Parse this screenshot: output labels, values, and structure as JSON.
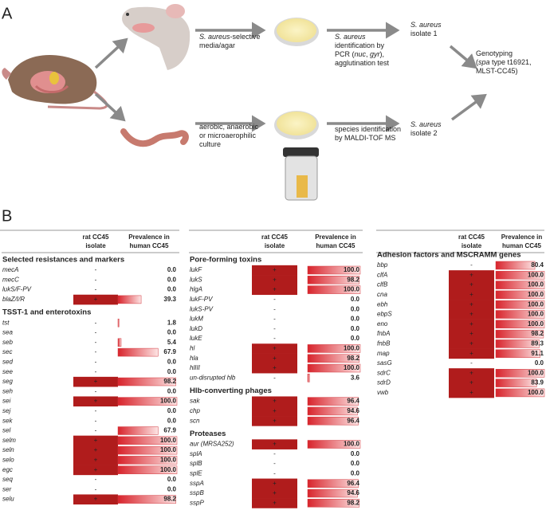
{
  "panel_a": {
    "label": "A",
    "nodes": [
      {
        "lines": [
          [
            {
              "text": "S. aureus",
              "italic": true
            },
            {
              "text": "-selective"
            }
          ],
          [
            {
              "text": "media/agar"
            }
          ]
        ]
      },
      {
        "lines": [
          [
            {
              "text": "S. aureus",
              "italic": true
            }
          ],
          [
            {
              "text": "identification by"
            }
          ],
          [
            {
              "text": "PCR ("
            },
            {
              "text": "nuc",
              "italic": true
            },
            {
              "text": ", "
            },
            {
              "text": "gyr",
              "italic": true
            },
            {
              "text": "),"
            }
          ],
          [
            {
              "text": "agglutination test"
            }
          ]
        ]
      },
      {
        "lines": [
          [
            {
              "text": "S. aureus",
              "italic": true
            }
          ],
          [
            {
              "text": "isolate 1"
            }
          ]
        ]
      },
      {
        "lines": [
          [
            {
              "text": "aerobic, anaerobic"
            }
          ],
          [
            {
              "text": "or microaerophilic"
            }
          ],
          [
            {
              "text": "culture"
            }
          ]
        ]
      },
      {
        "lines": [
          [
            {
              "text": "species identification"
            }
          ],
          [
            {
              "text": "by MALDI-TOF MS"
            }
          ]
        ]
      },
      {
        "lines": [
          [
            {
              "text": "S. aureus",
              "italic": true
            }
          ],
          [
            {
              "text": "isolate 2"
            }
          ]
        ]
      },
      {
        "lines": [
          [
            {
              "text": "Genotyping"
            }
          ],
          [
            {
              "text": "("
            },
            {
              "text": "spa",
              "italic": true
            },
            {
              "text": " type t16921,"
            }
          ],
          [
            {
              "text": "MLST-CC45)"
            }
          ]
        ]
      }
    ]
  },
  "panel_b": {
    "label": "B",
    "highlight_color": "#b01c1c",
    "tables": [
      {
        "columns": [
          [
            "rat CC45",
            "isolate"
          ],
          [
            "Prevalence in",
            "human CC45"
          ]
        ],
        "sections": [
          {
            "title": "Selected resistances and markers",
            "rows": [
              {
                "gene": "mecA",
                "rat": "-",
                "prevalence": {
                  "value": 0,
                  "label": "0.0"
                }
              },
              {
                "gene": "mecC",
                "rat": "-",
                "prevalence": {
                  "value": 0,
                  "label": "0.0"
                }
              },
              {
                "gene": "lukS/F-PV",
                "rat": "-",
                "prevalence": {
                  "value": 0,
                  "label": "0.0"
                }
              },
              {
                "gene": "blaZ/I/R",
                "rat": "+",
                "highlight": true,
                "prevalence": {
                  "value": 39.3,
                  "label": "39.3"
                }
              }
            ]
          },
          {
            "title": "TSST-1 and enterotoxins",
            "rows": [
              {
                "gene": "tst",
                "rat": "-",
                "prevalence": {
                  "value": 1.8,
                  "label": "1.8"
                }
              },
              {
                "gene": "sea",
                "rat": "-",
                "prevalence": {
                  "value": 0,
                  "label": "0.0"
                }
              },
              {
                "gene": "seb",
                "rat": "-",
                "prevalence": {
                  "value": 5.4,
                  "label": "5.4"
                }
              },
              {
                "gene": "sec",
                "rat": "-",
                "prevalence": {
                  "value": 67.9,
                  "label": "67.9"
                }
              },
              {
                "gene": "sed",
                "rat": "-",
                "prevalence": {
                  "value": 0,
                  "label": "0.0"
                }
              },
              {
                "gene": "see",
                "rat": "-",
                "prevalence": {
                  "value": 0,
                  "label": "0.0"
                }
              },
              {
                "gene": "seg",
                "rat": "+",
                "highlight": true,
                "prevalence": {
                  "value": 98.2,
                  "label": "98.2"
                }
              },
              {
                "gene": "seh",
                "rat": "-",
                "prevalence": {
                  "value": 0,
                  "label": "0.0"
                }
              },
              {
                "gene": "sei",
                "rat": "+",
                "highlight": true,
                "prevalence": {
                  "value": 100,
                  "label": "100.0"
                }
              },
              {
                "gene": "sej",
                "rat": "-",
                "prevalence": {
                  "value": 0,
                  "label": "0.0"
                }
              },
              {
                "gene": "sek",
                "rat": "-",
                "prevalence": {
                  "value": 0,
                  "label": "0.0"
                }
              },
              {
                "gene": "sel",
                "rat": "-",
                "prevalence": {
                  "value": 67.9,
                  "label": "67.9"
                }
              },
              {
                "gene": "selm",
                "rat": "+",
                "highlight": true,
                "prevalence": {
                  "value": 100,
                  "label": "100.0"
                }
              },
              {
                "gene": "seln",
                "rat": "+",
                "highlight": true,
                "prevalence": {
                  "value": 100,
                  "label": "100.0"
                }
              },
              {
                "gene": "selo",
                "rat": "+",
                "highlight": true,
                "prevalence": {
                  "value": 100,
                  "label": "100.0"
                }
              },
              {
                "gene": "egc",
                "rat": "+",
                "highlight": true,
                "prevalence": {
                  "value": 100,
                  "label": "100.0"
                }
              },
              {
                "gene": "seq",
                "rat": "-",
                "prevalence": {
                  "value": 0,
                  "label": "0.0"
                }
              },
              {
                "gene": "ser",
                "rat": "-",
                "prevalence": {
                  "value": 0,
                  "label": "0.0"
                }
              },
              {
                "gene": "selu",
                "rat": "+",
                "highlight": true,
                "prevalence": {
                  "value": 98.2,
                  "label": "98.2"
                }
              }
            ]
          }
        ]
      },
      {
        "columns": [
          [
            "rat CC45",
            "isolate"
          ],
          [
            "Prevalence in",
            "human CC45"
          ]
        ],
        "sections": [
          {
            "title": "Pore-forming toxins",
            "rows": [
              {
                "gene": "lukF",
                "rat": "+",
                "highlight": true,
                "prevalence": {
                  "value": 100,
                  "label": "100.0"
                }
              },
              {
                "gene": "lukS",
                "rat": "+",
                "highlight": true,
                "prevalence": {
                  "value": 98.2,
                  "label": "98.2"
                }
              },
              {
                "gene": "hlgA",
                "rat": "+",
                "highlight": true,
                "prevalence": {
                  "value": 100,
                  "label": "100.0"
                }
              },
              {
                "gene": "lukF-PV",
                "rat": "-",
                "prevalence": {
                  "value": 0,
                  "label": "0.0"
                }
              },
              {
                "gene": "lukS-PV",
                "rat": "-",
                "prevalence": {
                  "value": 0,
                  "label": "0.0"
                }
              },
              {
                "gene": "lukM",
                "rat": "-",
                "prevalence": {
                  "value": 0,
                  "label": "0.0"
                }
              },
              {
                "gene": "lukD",
                "rat": "-",
                "prevalence": {
                  "value": 0,
                  "label": "0.0"
                }
              },
              {
                "gene": "lukE",
                "rat": "-",
                "prevalence": {
                  "value": 0,
                  "label": "0.0"
                }
              },
              {
                "gene": "hl",
                "rat": "+",
                "highlight": true,
                "prevalence": {
                  "value": 100,
                  "label": "100.0"
                }
              },
              {
                "gene": "hla",
                "rat": "+",
                "highlight": true,
                "prevalence": {
                  "value": 98.2,
                  "label": "98.2"
                }
              },
              {
                "gene": "hlIII",
                "rat": "+",
                "highlight": true,
                "prevalence": {
                  "value": 100,
                  "label": "100.0"
                }
              },
              {
                "gene": "un-disrupted hlb",
                "rat": "-",
                "prevalence": {
                  "value": 3.6,
                  "label": "3.6"
                }
              }
            ]
          },
          {
            "title": "Hlb-converting phages",
            "rows": [
              {
                "gene": "sak",
                "rat": "+",
                "highlight": true,
                "prevalence": {
                  "value": 96.4,
                  "label": "96.4"
                }
              },
              {
                "gene": "chp",
                "rat": "+",
                "highlight": true,
                "prevalence": {
                  "value": 94.6,
                  "label": "94.6"
                }
              },
              {
                "gene": "scn",
                "rat": "+",
                "highlight": true,
                "prevalence": {
                  "value": 96.4,
                  "label": "96.4"
                }
              }
            ]
          },
          {
            "title": "Proteases",
            "rows": [
              {
                "gene": "aur (MRSA252)",
                "rat": "+",
                "highlight": true,
                "prevalence": {
                  "value": 100,
                  "label": "100.0"
                }
              },
              {
                "gene": "splA",
                "rat": "-",
                "prevalence": {
                  "value": 0,
                  "label": "0.0"
                }
              },
              {
                "gene": "splB",
                "rat": "-",
                "prevalence": {
                  "value": 0,
                  "label": "0.0"
                }
              },
              {
                "gene": "splE",
                "rat": "-",
                "prevalence": {
                  "value": 0,
                  "label": "0.0"
                }
              },
              {
                "gene": "sspA",
                "rat": "+",
                "highlight": true,
                "prevalence": {
                  "value": 96.4,
                  "label": "96.4"
                }
              },
              {
                "gene": "sspB",
                "rat": "+",
                "highlight": true,
                "prevalence": {
                  "value": 94.6,
                  "label": "94.6"
                }
              },
              {
                "gene": "sspP",
                "rat": "+",
                "highlight": true,
                "prevalence": {
                  "value": 98.2,
                  "label": "98.2"
                }
              }
            ]
          }
        ]
      },
      {
        "columns": [
          [
            "rat CC45",
            "isolate"
          ],
          [
            "Prevalence in",
            "human CC45"
          ]
        ],
        "sections": [
          {
            "title": "Adhesion factors and MSCRAMM genes",
            "rows": [
              {
                "gene": "bbp",
                "rat": "-",
                "prevalence": {
                  "value": 80.4,
                  "label": "80.4"
                }
              },
              {
                "gene": "clfA",
                "rat": "+",
                "highlight": true,
                "prevalence": {
                  "value": 100,
                  "label": "100.0"
                }
              },
              {
                "gene": "clfB",
                "rat": "+",
                "highlight": true,
                "prevalence": {
                  "value": 100,
                  "label": "100.0"
                }
              },
              {
                "gene": "cna",
                "rat": "+",
                "highlight": true,
                "prevalence": {
                  "value": 100,
                  "label": "100.0"
                }
              },
              {
                "gene": "ebh",
                "rat": "+",
                "highlight": true,
                "prevalence": {
                  "value": 100,
                  "label": "100.0"
                }
              },
              {
                "gene": "ebpS",
                "rat": "+",
                "highlight": true,
                "prevalence": {
                  "value": 100,
                  "label": "100.0"
                }
              },
              {
                "gene": "eno",
                "rat": "+",
                "highlight": true,
                "prevalence": {
                  "value": 100,
                  "label": "100.0"
                }
              },
              {
                "gene": "fnbA",
                "rat": "+",
                "highlight": true,
                "prevalence": {
                  "value": 98.2,
                  "label": "98.2"
                }
              },
              {
                "gene": "fnbB",
                "rat": "+",
                "highlight": true,
                "prevalence": {
                  "value": 89.3,
                  "label": "89.3"
                }
              },
              {
                "gene": "map",
                "rat": "+",
                "highlight": true,
                "prevalence": {
                  "value": 91.1,
                  "label": "91.1"
                }
              },
              {
                "gene": "sasG",
                "rat": "-",
                "prevalence": {
                  "value": 0,
                  "label": "0.0"
                }
              },
              {
                "gene": "sdrC",
                "rat": "+",
                "highlight": true,
                "prevalence": {
                  "value": 100,
                  "label": "100.0"
                }
              },
              {
                "gene": "sdrD",
                "rat": "+",
                "highlight": true,
                "prevalence": {
                  "value": 83.9,
                  "label": "83.9"
                }
              },
              {
                "gene": "vwb",
                "rat": "+",
                "highlight": true,
                "prevalence": {
                  "value": 100,
                  "label": "100.0"
                }
              }
            ]
          }
        ]
      }
    ]
  }
}
